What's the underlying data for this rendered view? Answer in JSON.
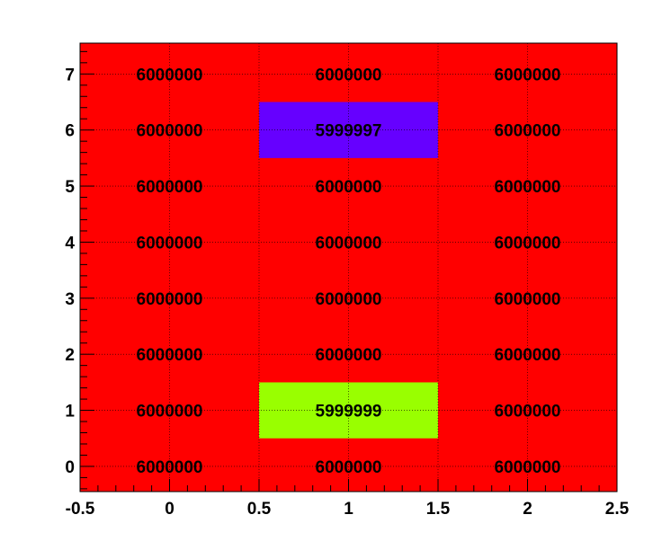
{
  "chart_data": {
    "type": "heatmap",
    "title": "",
    "xlabel": "",
    "ylabel": "",
    "xlim": [
      -0.5,
      2.5
    ],
    "ylim": [
      -0.45,
      7.55
    ],
    "x_ticks": [
      "-0.5",
      "0",
      "0.5",
      "1",
      "1.5",
      "2",
      "2.5"
    ],
    "y_ticks": [
      "0",
      "1",
      "2",
      "3",
      "4",
      "5",
      "6",
      "7"
    ],
    "x_bins": [
      0,
      1,
      2
    ],
    "y_bins": [
      0,
      1,
      2,
      3,
      4,
      5,
      6,
      7
    ],
    "values": [
      [
        6000000,
        6000000,
        6000000
      ],
      [
        6000000,
        5999999,
        6000000
      ],
      [
        6000000,
        6000000,
        6000000
      ],
      [
        6000000,
        6000000,
        6000000
      ],
      [
        6000000,
        6000000,
        6000000
      ],
      [
        6000000,
        6000000,
        6000000
      ],
      [
        6000000,
        5999997,
        6000000
      ],
      [
        6000000,
        6000000,
        6000000
      ]
    ],
    "grid": true,
    "colors": {
      "6000000": "#ff0000",
      "5999999": "#99ff00",
      "5999997": "#6600ff"
    }
  }
}
